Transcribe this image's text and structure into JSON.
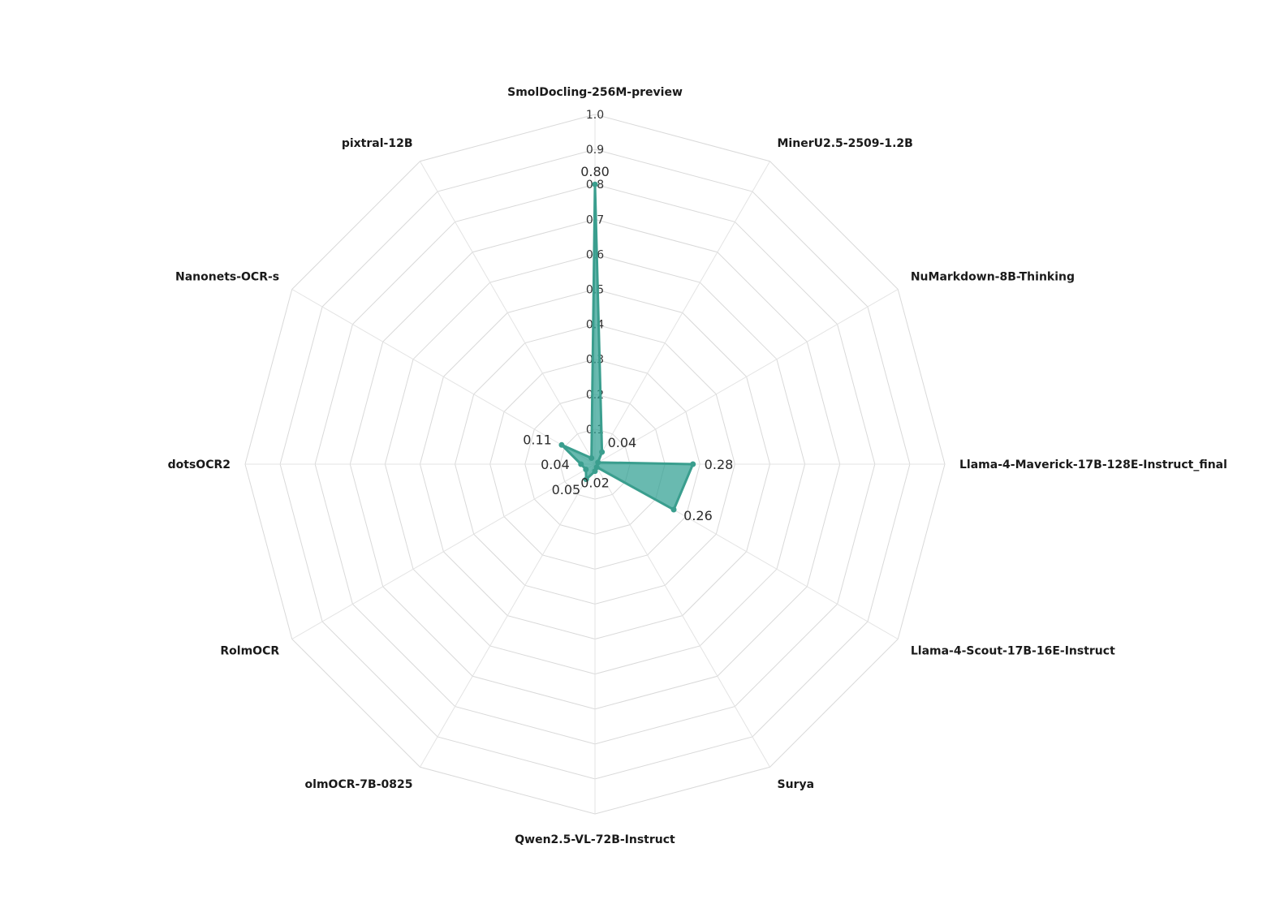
{
  "chart_data": {
    "type": "radar",
    "categories": [
      "SmolDocling-256M-preview",
      "MinerU2.5-2509-1.2B",
      "NuMarkdown-8B-Thinking",
      "Llama-4-Maverick-17B-128E-Instruct_final",
      "Llama-4-Scout-17B-16E-Instruct",
      "Surya",
      "Qwen2.5-VL-72B-Instruct",
      "olmOCR-7B-0825",
      "RolmOCR",
      "dotsOCR2",
      "Nanonets-OCR-s",
      "pixtral-12B"
    ],
    "series": [
      {
        "values": [
          0.8,
          0.04,
          0.01,
          0.28,
          0.26,
          0.01,
          0.02,
          0.05,
          0.03,
          0.04,
          0.11,
          0.02
        ]
      }
    ],
    "value_labels": [
      "0.80",
      "0.04",
      "",
      "0.28",
      "0.26",
      "",
      "0.02",
      "0.05",
      "",
      "0.04",
      "0.11",
      ""
    ],
    "radial_range": [
      0,
      1.0
    ],
    "radial_ticks": [
      "0.1",
      "0.2",
      "0.3",
      "0.4",
      "0.5",
      "0.6",
      "0.7",
      "0.8",
      "0.9",
      "1.0"
    ],
    "grid": true,
    "legend": "none",
    "colors": {
      "fill": "#2a9d8f",
      "stroke": "#3a9e8e",
      "grid": "#d9d9d9"
    }
  }
}
